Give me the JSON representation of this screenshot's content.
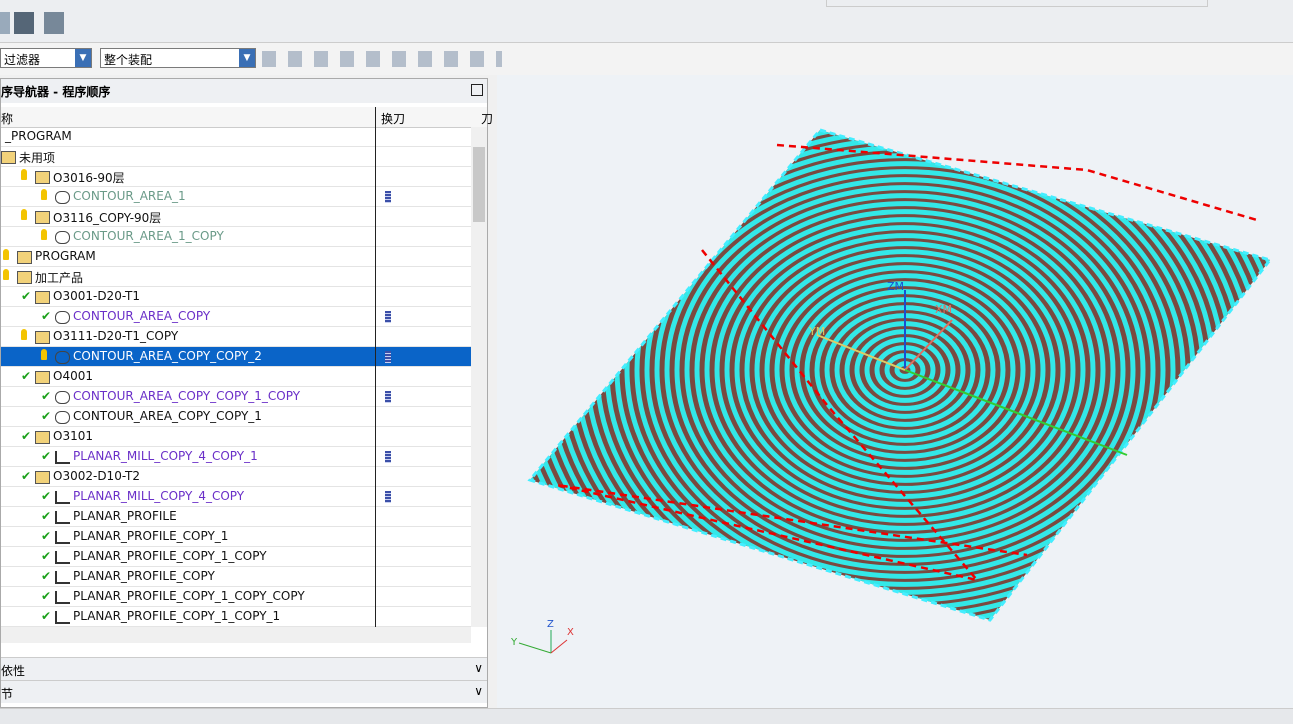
{
  "toolbar": {
    "filter": "过滤器",
    "assembly": "整个装配"
  },
  "navigator": {
    "title": "序导航器 - 程序顺序",
    "columns": [
      "称",
      "换刀",
      "刀"
    ],
    "rows": [
      {
        "label": "_PROGRAM",
        "level": 0,
        "status": null,
        "icon": null,
        "style": "normal",
        "tool_change": false
      },
      {
        "label": "未用项",
        "level": 0,
        "status": null,
        "icon": "folder",
        "style": "normal",
        "tool_change": false
      },
      {
        "label": "O3016-90层",
        "level": 1,
        "status": "bulb",
        "icon": "folder",
        "style": "normal",
        "tool_change": false
      },
      {
        "label": "CONTOUR_AREA_1",
        "level": 2,
        "status": "bulb",
        "icon": "op",
        "style": "unused",
        "tool_change": true
      },
      {
        "label": "O3116_COPY-90层",
        "level": 1,
        "status": "bulb",
        "icon": "folder",
        "style": "normal",
        "tool_change": false
      },
      {
        "label": "CONTOUR_AREA_1_COPY",
        "level": 2,
        "status": "bulb",
        "icon": "op",
        "style": "unused",
        "tool_change": false
      },
      {
        "label": "PROGRAM",
        "level": 0,
        "status": "bulb",
        "icon": "folder",
        "style": "normal",
        "tool_change": false
      },
      {
        "label": "加工产品",
        "level": 0,
        "status": "bulb",
        "icon": "folder",
        "style": "normal",
        "tool_change": false
      },
      {
        "label": "O3001-D20-T1",
        "level": 1,
        "status": "check",
        "icon": "folder",
        "style": "normal",
        "tool_change": false
      },
      {
        "label": "CONTOUR_AREA_COPY",
        "level": 2,
        "status": "check",
        "icon": "op",
        "style": "repost",
        "tool_change": true
      },
      {
        "label": "O3111-D20-T1_COPY",
        "level": 1,
        "status": "bulb",
        "icon": "folder",
        "style": "normal",
        "tool_change": false
      },
      {
        "label": "CONTOUR_AREA_COPY_COPY_2",
        "level": 2,
        "status": "bulb",
        "icon": "op",
        "style": "selected",
        "tool_change": true
      },
      {
        "label": "O4001",
        "level": 1,
        "status": "check",
        "icon": "folder",
        "style": "normal",
        "tool_change": false
      },
      {
        "label": "CONTOUR_AREA_COPY_COPY_1_COPY",
        "level": 2,
        "status": "check",
        "icon": "op",
        "style": "repost",
        "tool_change": true
      },
      {
        "label": "CONTOUR_AREA_COPY_COPY_1",
        "level": 2,
        "status": "check",
        "icon": "op",
        "style": "normal",
        "tool_change": false
      },
      {
        "label": "O3101",
        "level": 1,
        "status": "check",
        "icon": "folder",
        "style": "normal",
        "tool_change": false
      },
      {
        "label": "PLANAR_MILL_COPY_4_COPY_1",
        "level": 2,
        "status": "check",
        "icon": "mill",
        "style": "repost",
        "tool_change": true
      },
      {
        "label": "O3002-D10-T2",
        "level": 1,
        "status": "check",
        "icon": "folder",
        "style": "normal",
        "tool_change": false
      },
      {
        "label": "PLANAR_MILL_COPY_4_COPY",
        "level": 2,
        "status": "check",
        "icon": "mill",
        "style": "repost",
        "tool_change": true
      },
      {
        "label": "PLANAR_PROFILE",
        "level": 2,
        "status": "check",
        "icon": "mill",
        "style": "normal",
        "tool_change": false
      },
      {
        "label": "PLANAR_PROFILE_COPY_1",
        "level": 2,
        "status": "check",
        "icon": "mill",
        "style": "normal",
        "tool_change": false
      },
      {
        "label": "PLANAR_PROFILE_COPY_1_COPY",
        "level": 2,
        "status": "check",
        "icon": "mill",
        "style": "normal",
        "tool_change": false
      },
      {
        "label": "PLANAR_PROFILE_COPY",
        "level": 2,
        "status": "check",
        "icon": "mill",
        "style": "normal",
        "tool_change": false
      },
      {
        "label": "PLANAR_PROFILE_COPY_1_COPY_COPY",
        "level": 2,
        "status": "check",
        "icon": "mill",
        "style": "normal",
        "tool_change": false
      },
      {
        "label": "PLANAR_PROFILE_COPY_1_COPY_1",
        "level": 2,
        "status": "check",
        "icon": "mill",
        "style": "normal",
        "tool_change": false
      }
    ],
    "sections": [
      "依性",
      "节"
    ]
  },
  "viewport": {
    "wcs": [
      "ZM",
      "XM",
      "YM"
    ],
    "triad": [
      "Z",
      "X",
      "Y"
    ]
  }
}
